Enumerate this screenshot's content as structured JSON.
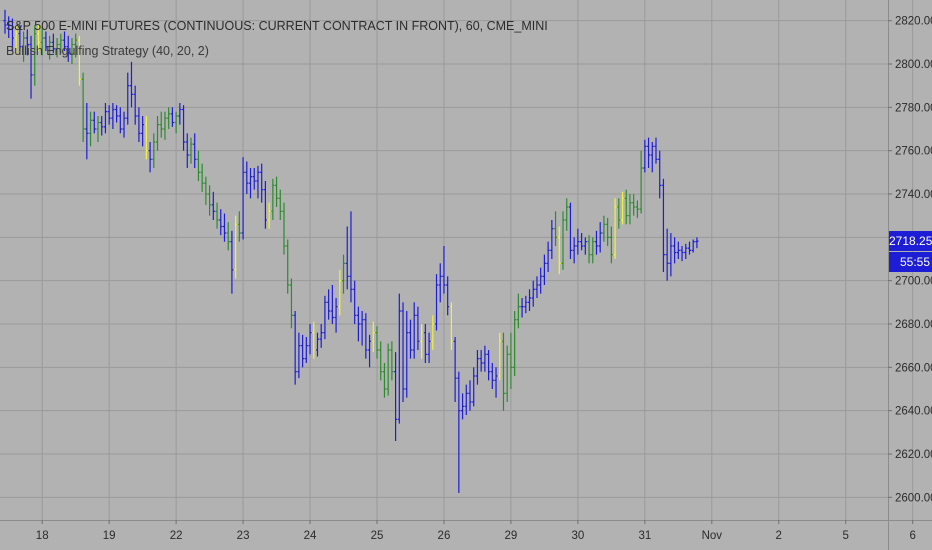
{
  "header": {
    "title": "S&P 500 E-MINI FUTURES (CONTINUOUS: CURRENT CONTRACT IN FRONT), 60, CME_MINI",
    "indicator": "Bullish Engulfing Strategy (40, 20, 2)"
  },
  "price_tag": {
    "last_price": "2718.25",
    "countdown": "55:55"
  },
  "colors": {
    "background": "#b2b2b2",
    "grid": "#9a9a9a",
    "neutral_bar": "#1d1dd6",
    "bullish_bar": "#2f8a2f",
    "signal_bar": "#f2f23c",
    "price_tag": "#1d1dd6"
  },
  "chart_data": {
    "type": "ohlc",
    "series_colors": {
      "n": "neutral (blue)",
      "g": "bullish (green)",
      "y": "engulfing signal (yellow)"
    },
    "ylim": [
      2590,
      2830
    ],
    "y_ticks": [
      2600,
      2620,
      2640,
      2660,
      2680,
      2700,
      2720,
      2740,
      2760,
      2780,
      2800,
      2820
    ],
    "y_tick_labels": [
      "2600.00",
      "2620.00",
      "2640.00",
      "2660.00",
      "2680.00",
      "2700.00",
      "2720.00",
      "2740.00",
      "2760.00",
      "2780.00",
      "2800.00",
      "2820.00"
    ],
    "x_ticks": [
      {
        "label": "18",
        "bar": 10
      },
      {
        "label": "19",
        "bar": 28
      },
      {
        "label": "22",
        "bar": 46
      },
      {
        "label": "23",
        "bar": 64
      },
      {
        "label": "24",
        "bar": 82
      },
      {
        "label": "25",
        "bar": 100
      },
      {
        "label": "26",
        "bar": 118
      },
      {
        "label": "29",
        "bar": 136
      },
      {
        "label": "30",
        "bar": 154
      },
      {
        "label": "31",
        "bar": 172
      },
      {
        "label": "Nov",
        "bar": 190
      },
      {
        "label": "2",
        "bar": 208
      },
      {
        "label": "5",
        "bar": 226
      },
      {
        "label": "6",
        "bar": 244
      }
    ],
    "bars": [
      [
        2820.0,
        2825.0,
        2814.0,
        2818.0,
        "n"
      ],
      [
        2818.0,
        2822.0,
        2812.0,
        2816.0,
        "n"
      ],
      [
        2816.0,
        2821.0,
        2806.0,
        2812.0,
        "n"
      ],
      [
        2812.0,
        2818.0,
        2804.0,
        2814.0,
        "y"
      ],
      [
        2814.0,
        2818.0,
        2806.0,
        2808.0,
        "n"
      ],
      [
        2808.0,
        2815.0,
        2801.0,
        2812.0,
        "g"
      ],
      [
        2812.0,
        2816.0,
        2804.0,
        2809.0,
        "n"
      ],
      [
        2809.0,
        2813.0,
        2784.0,
        2795.0,
        "n"
      ],
      [
        2795.0,
        2818.0,
        2790.0,
        2814.0,
        "g"
      ],
      [
        2814.0,
        2818.0,
        2806.0,
        2810.0,
        "y"
      ],
      [
        2810.0,
        2817.0,
        2804.0,
        2812.0,
        "g"
      ],
      [
        2812.0,
        2815.0,
        2806.0,
        2808.0,
        "n"
      ],
      [
        2808.0,
        2813.0,
        2802.0,
        2810.0,
        "g"
      ],
      [
        2810.0,
        2814.0,
        2805.0,
        2807.0,
        "n"
      ],
      [
        2807.0,
        2812.0,
        2803.0,
        2809.0,
        "g"
      ],
      [
        2809.0,
        2814.0,
        2805.0,
        2811.0,
        "g"
      ],
      [
        2811.0,
        2815.0,
        2806.0,
        2808.0,
        "n"
      ],
      [
        2808.0,
        2813.0,
        2801.0,
        2805.0,
        "n"
      ],
      [
        2805.0,
        2812.0,
        2800.0,
        2809.0,
        "g"
      ],
      [
        2809.0,
        2814.0,
        2803.0,
        2811.0,
        "g"
      ],
      [
        2811.0,
        2813.0,
        2790.0,
        2793.0,
        "y"
      ],
      [
        2793.0,
        2796.0,
        2764.0,
        2770.0,
        "g"
      ],
      [
        2770.0,
        2782.0,
        2756.0,
        2768.0,
        "n"
      ],
      [
        2768.0,
        2778.0,
        2762.0,
        2774.0,
        "g"
      ],
      [
        2774.0,
        2778.0,
        2768.0,
        2770.0,
        "n"
      ],
      [
        2770.0,
        2776.0,
        2764.0,
        2773.0,
        "g"
      ],
      [
        2773.0,
        2776.0,
        2767.0,
        2771.0,
        "n"
      ],
      [
        2771.0,
        2782.0,
        2768.0,
        2778.0,
        "n"
      ],
      [
        2778.0,
        2781.0,
        2772.0,
        2775.0,
        "n"
      ],
      [
        2775.0,
        2782.0,
        2770.0,
        2779.0,
        "n"
      ],
      [
        2779.0,
        2781.0,
        2773.0,
        2776.0,
        "n"
      ],
      [
        2776.0,
        2780.0,
        2768.0,
        2770.0,
        "n"
      ],
      [
        2770.0,
        2778.0,
        2766.0,
        2775.0,
        "n"
      ],
      [
        2775.0,
        2796.0,
        2772.0,
        2790.0,
        "n"
      ],
      [
        2790.0,
        2801.0,
        2780.0,
        2786.0,
        "n"
      ],
      [
        2786.0,
        2790.0,
        2772.0,
        2776.0,
        "n"
      ],
      [
        2776.0,
        2780.0,
        2764.0,
        2768.0,
        "n"
      ],
      [
        2768.0,
        2776.0,
        2762.0,
        2772.0,
        "n"
      ],
      [
        2772.0,
        2776.0,
        2756.0,
        2760.0,
        "y"
      ],
      [
        2760.0,
        2764.0,
        2750.0,
        2756.0,
        "n"
      ],
      [
        2756.0,
        2768.0,
        2752.0,
        2764.0,
        "g"
      ],
      [
        2764.0,
        2776.0,
        2760.0,
        2772.0,
        "g"
      ],
      [
        2772.0,
        2778.0,
        2766.0,
        2770.0,
        "g"
      ],
      [
        2770.0,
        2778.0,
        2765.0,
        2775.0,
        "g"
      ],
      [
        2775.0,
        2780.0,
        2770.0,
        2777.0,
        "g"
      ],
      [
        2777.0,
        2780.0,
        2771.0,
        2773.0,
        "n"
      ],
      [
        2773.0,
        2778.0,
        2768.0,
        2776.0,
        "g"
      ],
      [
        2776.0,
        2782.0,
        2772.0,
        2779.0,
        "n"
      ],
      [
        2779.0,
        2781.0,
        2760.0,
        2764.0,
        "n"
      ],
      [
        2764.0,
        2768.0,
        2752.0,
        2758.0,
        "n"
      ],
      [
        2758.0,
        2766.0,
        2754.0,
        2763.0,
        "g"
      ],
      [
        2763.0,
        2768.0,
        2752.0,
        2756.0,
        "n"
      ],
      [
        2756.0,
        2760.0,
        2746.0,
        2750.0,
        "g"
      ],
      [
        2750.0,
        2754.0,
        2741.0,
        2745.0,
        "g"
      ],
      [
        2745.0,
        2748.0,
        2735.0,
        2740.0,
        "g"
      ],
      [
        2740.0,
        2744.0,
        2730.0,
        2735.0,
        "g"
      ],
      [
        2735.0,
        2741.0,
        2728.0,
        2732.0,
        "n"
      ],
      [
        2732.0,
        2736.0,
        2724.0,
        2728.0,
        "g"
      ],
      [
        2728.0,
        2733.0,
        2721.0,
        2725.0,
        "n"
      ],
      [
        2725.0,
        2731.0,
        2718.0,
        2722.0,
        "n"
      ],
      [
        2722.0,
        2727.0,
        2714.0,
        2718.0,
        "g"
      ],
      [
        2718.0,
        2723.0,
        2694.0,
        2705.0,
        "n"
      ],
      [
        2705.0,
        2730.0,
        2701.0,
        2726.0,
        "y"
      ],
      [
        2726.0,
        2732.0,
        2718.0,
        2722.0,
        "g"
      ],
      [
        2722.0,
        2757.0,
        2719.0,
        2750.0,
        "n"
      ],
      [
        2750.0,
        2755.0,
        2740.0,
        2745.0,
        "n"
      ],
      [
        2745.0,
        2752.0,
        2738.0,
        2748.0,
        "n"
      ],
      [
        2748.0,
        2752.0,
        2742.0,
        2746.0,
        "n"
      ],
      [
        2746.0,
        2753.0,
        2738.0,
        2750.0,
        "n"
      ],
      [
        2750.0,
        2754.0,
        2736.0,
        2742.0,
        "n"
      ],
      [
        2742.0,
        2746.0,
        2724.0,
        2728.0,
        "n"
      ],
      [
        2728.0,
        2736.0,
        2724.0,
        2732.0,
        "y"
      ],
      [
        2732.0,
        2747.0,
        2728.0,
        2744.0,
        "g"
      ],
      [
        2744.0,
        2748.0,
        2734.0,
        2738.0,
        "g"
      ],
      [
        2738.0,
        2742.0,
        2728.0,
        2732.0,
        "g"
      ],
      [
        2732.0,
        2736.0,
        2712.0,
        2716.0,
        "g"
      ],
      [
        2716.0,
        2719.0,
        2694.0,
        2698.0,
        "g"
      ],
      [
        2698.0,
        2701.0,
        2678.0,
        2684.0,
        "g"
      ],
      [
        2684.0,
        2686.0,
        2652.0,
        2658.0,
        "n"
      ],
      [
        2658.0,
        2676.0,
        2655.0,
        2670.0,
        "n"
      ],
      [
        2670.0,
        2675.0,
        2660.0,
        2664.0,
        "n"
      ],
      [
        2664.0,
        2674.0,
        2662.0,
        2670.0,
        "n"
      ],
      [
        2670.0,
        2680.0,
        2666.0,
        2676.0,
        "n"
      ],
      [
        2676.0,
        2681.0,
        2664.0,
        2668.0,
        "y"
      ],
      [
        2668.0,
        2676.0,
        2665.0,
        2673.0,
        "n"
      ],
      [
        2673.0,
        2680.0,
        2669.0,
        2676.0,
        "n"
      ],
      [
        2676.0,
        2693.0,
        2673.0,
        2690.0,
        "n"
      ],
      [
        2690.0,
        2696.0,
        2682.0,
        2686.0,
        "n"
      ],
      [
        2686.0,
        2698.0,
        2680.0,
        2683.0,
        "n"
      ],
      [
        2683.0,
        2692.0,
        2676.0,
        2688.0,
        "n"
      ],
      [
        2688.0,
        2705.0,
        2684.0,
        2700.0,
        "y"
      ],
      [
        2700.0,
        2712.0,
        2694.0,
        2708.0,
        "g"
      ],
      [
        2708.0,
        2725.0,
        2696.0,
        2702.0,
        "n"
      ],
      [
        2702.0,
        2732.0,
        2690.0,
        2696.0,
        "n"
      ],
      [
        2696.0,
        2700.0,
        2680.0,
        2684.0,
        "n"
      ],
      [
        2684.0,
        2688.0,
        2672.0,
        2680.0,
        "n"
      ],
      [
        2680.0,
        2686.0,
        2670.0,
        2682.0,
        "n"
      ],
      [
        2682.0,
        2685.0,
        2664.0,
        2668.0,
        "n"
      ],
      [
        2668.0,
        2675.0,
        2660.0,
        2672.0,
        "n"
      ],
      [
        2672.0,
        2681.0,
        2667.0,
        2676.0,
        "y"
      ],
      [
        2676.0,
        2679.0,
        2664.0,
        2668.0,
        "g"
      ],
      [
        2668.0,
        2672.0,
        2654.0,
        2658.0,
        "g"
      ],
      [
        2658.0,
        2662.0,
        2646.0,
        2650.0,
        "g"
      ],
      [
        2650.0,
        2671.0,
        2647.0,
        2668.0,
        "g"
      ],
      [
        2668.0,
        2672.0,
        2654.0,
        2658.0,
        "g"
      ],
      [
        2658.0,
        2667.0,
        2626.0,
        2636.0,
        "n"
      ],
      [
        2636.0,
        2694.0,
        2634.0,
        2686.0,
        "n"
      ],
      [
        2686.0,
        2690.0,
        2644.0,
        2650.0,
        "n"
      ],
      [
        2650.0,
        2686.0,
        2646.0,
        2676.0,
        "n"
      ],
      [
        2676.0,
        2682.0,
        2664.0,
        2668.0,
        "n"
      ],
      [
        2668.0,
        2690.0,
        2664.0,
        2684.0,
        "n"
      ],
      [
        2684.0,
        2688.0,
        2668.0,
        2672.0,
        "n"
      ],
      [
        2672.0,
        2680.0,
        2664.0,
        2676.0,
        "y"
      ],
      [
        2676.0,
        2680.0,
        2662.0,
        2666.0,
        "n"
      ],
      [
        2666.0,
        2676.0,
        2662.0,
        2672.0,
        "n"
      ],
      [
        2672.0,
        2684.0,
        2668.0,
        2680.0,
        "y"
      ],
      [
        2680.0,
        2703.0,
        2677.0,
        2698.0,
        "n"
      ],
      [
        2698.0,
        2708.0,
        2690.0,
        2702.0,
        "n"
      ],
      [
        2702.0,
        2716.0,
        2694.0,
        2698.0,
        "n"
      ],
      [
        2698.0,
        2702.0,
        2684.0,
        2688.0,
        "n"
      ],
      [
        2688.0,
        2690.0,
        2668.0,
        2672.0,
        "y"
      ],
      [
        2672.0,
        2674.0,
        2644.0,
        2655.0,
        "n"
      ],
      [
        2655.0,
        2658.0,
        2602.0,
        2640.0,
        "n"
      ],
      [
        2640.0,
        2648.0,
        2636.0,
        2642.0,
        "n"
      ],
      [
        2642.0,
        2652.0,
        2638.0,
        2648.0,
        "n"
      ],
      [
        2648.0,
        2654.0,
        2640.0,
        2644.0,
        "n"
      ],
      [
        2644.0,
        2660.0,
        2642.0,
        2656.0,
        "n"
      ],
      [
        2656.0,
        2668.0,
        2652.0,
        2664.0,
        "n"
      ],
      [
        2664.0,
        2668.0,
        2658.0,
        2662.0,
        "n"
      ],
      [
        2662.0,
        2670.0,
        2658.0,
        2666.0,
        "n"
      ],
      [
        2666.0,
        2668.0,
        2654.0,
        2658.0,
        "n"
      ],
      [
        2658.0,
        2662.0,
        2650.0,
        2654.0,
        "n"
      ],
      [
        2654.0,
        2660.0,
        2646.0,
        2656.0,
        "n"
      ],
      [
        2656.0,
        2676.0,
        2654.0,
        2672.0,
        "y"
      ],
      [
        2672.0,
        2676.0,
        2640.0,
        2648.0,
        "g"
      ],
      [
        2648.0,
        2670.0,
        2644.0,
        2666.0,
        "g"
      ],
      [
        2666.0,
        2676.0,
        2650.0,
        2660.0,
        "g"
      ],
      [
        2660.0,
        2686.0,
        2656.0,
        2682.0,
        "g"
      ],
      [
        2682.0,
        2694.0,
        2678.0,
        2688.0,
        "g"
      ],
      [
        2688.0,
        2692.0,
        2683.0,
        2688.0,
        "n"
      ],
      [
        2688.0,
        2693.0,
        2685.0,
        2690.0,
        "n"
      ],
      [
        2690.0,
        2696.0,
        2686.0,
        2692.0,
        "n"
      ],
      [
        2692.0,
        2700.0,
        2688.0,
        2696.0,
        "n"
      ],
      [
        2696.0,
        2702.0,
        2692.0,
        2698.0,
        "n"
      ],
      [
        2698.0,
        2706.0,
        2694.0,
        2702.0,
        "n"
      ],
      [
        2702.0,
        2712.0,
        2698.0,
        2708.0,
        "n"
      ],
      [
        2708.0,
        2718.0,
        2704.0,
        2714.0,
        "n"
      ],
      [
        2714.0,
        2728.0,
        2710.0,
        2724.0,
        "n"
      ],
      [
        2724.0,
        2732.0,
        2716.0,
        2720.0,
        "g"
      ],
      [
        2720.0,
        2725.0,
        2703.0,
        2708.0,
        "y"
      ],
      [
        2708.0,
        2732.0,
        2705.0,
        2728.0,
        "g"
      ],
      [
        2728.0,
        2738.0,
        2723.0,
        2734.0,
        "g"
      ],
      [
        2734.0,
        2736.0,
        2710.0,
        2714.0,
        "n"
      ],
      [
        2714.0,
        2720.0,
        2708.0,
        2716.0,
        "n"
      ],
      [
        2716.0,
        2724.0,
        2712.0,
        2718.0,
        "n"
      ],
      [
        2718.0,
        2722.0,
        2714.0,
        2716.0,
        "n"
      ],
      [
        2716.0,
        2720.0,
        2712.0,
        2718.0,
        "n"
      ],
      [
        2718.0,
        2721.0,
        2708.0,
        2712.0,
        "g"
      ],
      [
        2712.0,
        2720.0,
        2708.0,
        2718.0,
        "g"
      ],
      [
        2718.0,
        2723.0,
        2712.0,
        2716.0,
        "n"
      ],
      [
        2716.0,
        2727.0,
        2713.0,
        2722.0,
        "n"
      ],
      [
        2722.0,
        2730.0,
        2718.0,
        2726.0,
        "g"
      ],
      [
        2726.0,
        2729.0,
        2716.0,
        2720.0,
        "g"
      ],
      [
        2720.0,
        2725.0,
        2708.0,
        2712.0,
        "g"
      ],
      [
        2712.0,
        2738.0,
        2710.0,
        2734.0,
        "y"
      ],
      [
        2734.0,
        2738.0,
        2724.0,
        2728.0,
        "g"
      ],
      [
        2728.0,
        2741.0,
        2726.0,
        2738.0,
        "y"
      ],
      [
        2738.0,
        2742.0,
        2726.0,
        2730.0,
        "g"
      ],
      [
        2730.0,
        2740.0,
        2726.0,
        2736.0,
        "g"
      ],
      [
        2736.0,
        2740.0,
        2730.0,
        2734.0,
        "g"
      ],
      [
        2734.0,
        2737.0,
        2729.0,
        2733.0,
        "g"
      ],
      [
        2733.0,
        2760.0,
        2731.0,
        2752.0,
        "g"
      ],
      [
        2752.0,
        2765.0,
        2750.0,
        2762.0,
        "n"
      ],
      [
        2762.0,
        2766.0,
        2752.0,
        2758.0,
        "n"
      ],
      [
        2758.0,
        2764.0,
        2750.0,
        2762.0,
        "n"
      ],
      [
        2762.0,
        2766.0,
        2754.0,
        2756.0,
        "n"
      ],
      [
        2756.0,
        2760.0,
        2738.0,
        2744.0,
        "n"
      ],
      [
        2744.0,
        2747.0,
        2704.0,
        2712.0,
        "n"
      ],
      [
        2712.0,
        2724.0,
        2700.0,
        2708.0,
        "n"
      ],
      [
        2708.0,
        2722.0,
        2702.0,
        2716.0,
        "n"
      ],
      [
        2716.0,
        2720.0,
        2708.0,
        2713.0,
        "n"
      ],
      [
        2713.0,
        2718.0,
        2710.0,
        2714.0,
        "n"
      ],
      [
        2714.0,
        2716.0,
        2709.0,
        2713.0,
        "n"
      ],
      [
        2713.0,
        2717.0,
        2710.0,
        2715.0,
        "n"
      ],
      [
        2715.0,
        2718.0,
        2712.0,
        2714.0,
        "n"
      ],
      [
        2714.0,
        2719.0,
        2713.0,
        2718.0,
        "n"
      ],
      [
        2718.0,
        2720.0,
        2715.0,
        2718.25,
        "n"
      ]
    ]
  }
}
